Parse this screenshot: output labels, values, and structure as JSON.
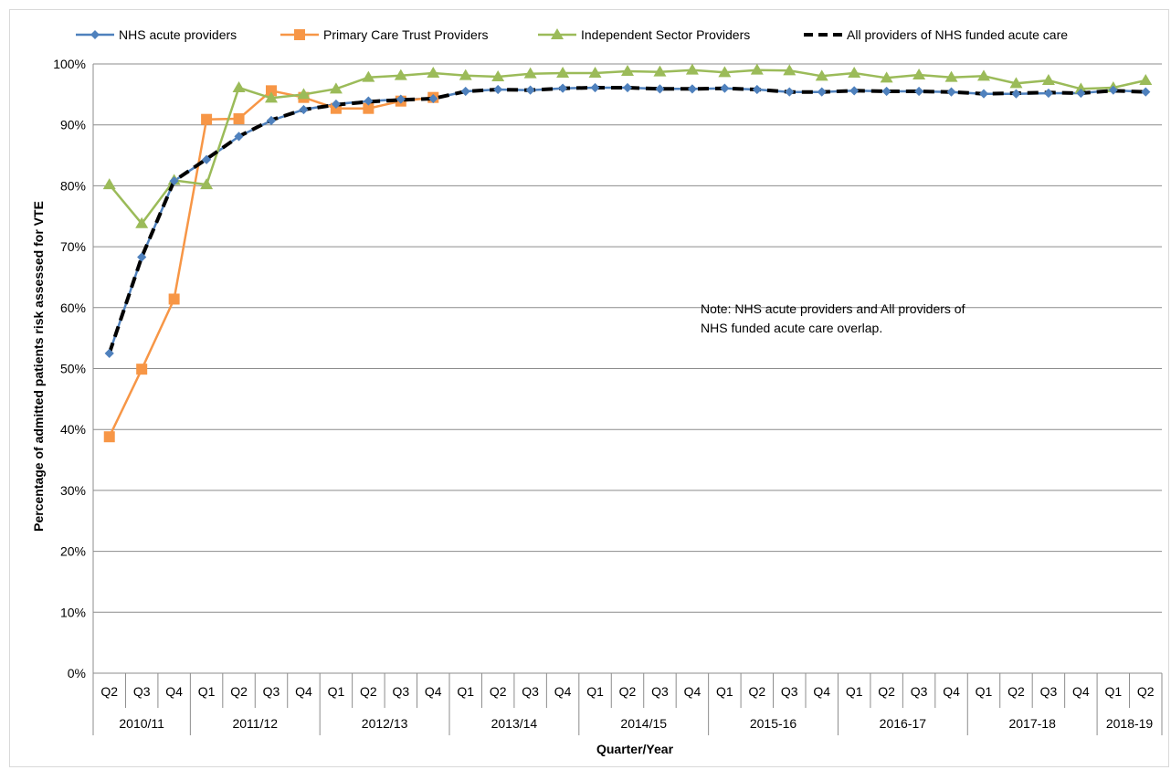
{
  "chart_data": {
    "type": "line",
    "xlabel": "Quarter/Year",
    "ylabel": "Percentage of admitted patients risk assessed for VTE",
    "ylim": [
      0,
      100
    ],
    "y_ticks": [
      "0%",
      "10%",
      "20%",
      "30%",
      "40%",
      "50%",
      "60%",
      "70%",
      "80%",
      "90%",
      "100%"
    ],
    "y_tick_values": [
      0,
      10,
      20,
      30,
      40,
      50,
      60,
      70,
      80,
      90,
      100
    ],
    "grid": true,
    "legend_position": "top",
    "categories": [
      "Q2",
      "Q3",
      "Q4",
      "Q1",
      "Q2",
      "Q3",
      "Q4",
      "Q1",
      "Q2",
      "Q3",
      "Q4",
      "Q1",
      "Q2",
      "Q3",
      "Q4",
      "Q1",
      "Q2",
      "Q3",
      "Q4",
      "Q1",
      "Q2",
      "Q3",
      "Q4",
      "Q1",
      "Q2",
      "Q3",
      "Q4",
      "Q1",
      "Q2",
      "Q3",
      "Q4",
      "Q1",
      "Q2"
    ],
    "year_groups": [
      {
        "label": "2010/11",
        "start": 0,
        "count": 3
      },
      {
        "label": "2011/12",
        "start": 3,
        "count": 4
      },
      {
        "label": "2012/13",
        "start": 7,
        "count": 4
      },
      {
        "label": "2013/14",
        "start": 11,
        "count": 4
      },
      {
        "label": "2014/15",
        "start": 15,
        "count": 4
      },
      {
        "label": "2015-16",
        "start": 19,
        "count": 4
      },
      {
        "label": "2016-17",
        "start": 23,
        "count": 4
      },
      {
        "label": "2017-18",
        "start": 27,
        "count": 4
      },
      {
        "label": "2018-19",
        "start": 31,
        "count": 2
      }
    ],
    "series": [
      {
        "name": "NHS acute providers",
        "color": "#4f81bd",
        "marker": "diamond",
        "values": [
          52.5,
          68.3,
          80.8,
          84.3,
          88.1,
          90.7,
          92.5,
          93.4,
          93.9,
          94.2,
          94.3,
          95.5,
          95.8,
          95.7,
          96.0,
          96.1,
          96.1,
          95.9,
          95.9,
          96.0,
          95.8,
          95.4,
          95.4,
          95.6,
          95.5,
          95.5,
          95.4,
          95.1,
          95.1,
          95.2,
          95.2,
          95.7,
          95.4
        ]
      },
      {
        "name": "Primary Care Trust Providers",
        "color": "#f79646",
        "marker": "square",
        "values": [
          38.8,
          49.9,
          61.4,
          90.9,
          91.0,
          95.6,
          94.5,
          92.7,
          92.7,
          93.9,
          94.5,
          null,
          null,
          null,
          null,
          null,
          null,
          null,
          null,
          null,
          null,
          null,
          null,
          null,
          null,
          null,
          null,
          null,
          null,
          null,
          null,
          null,
          null
        ]
      },
      {
        "name": "Independent Sector Providers",
        "color": "#9bbb59",
        "marker": "triangle",
        "values": [
          80.2,
          73.8,
          80.9,
          80.2,
          96.1,
          94.4,
          95.0,
          95.9,
          97.8,
          98.1,
          98.5,
          98.1,
          97.9,
          98.4,
          98.5,
          98.5,
          98.8,
          98.7,
          99.0,
          98.6,
          99.0,
          98.9,
          98.0,
          98.5,
          97.7,
          98.2,
          97.8,
          98.0,
          96.8,
          97.3,
          95.9,
          96.1,
          97.3
        ]
      },
      {
        "name": "All providers of NHS funded acute care",
        "color": "#000000",
        "marker": "none",
        "values": [
          52.5,
          68.3,
          80.8,
          84.4,
          88.1,
          90.8,
          92.5,
          93.3,
          93.8,
          94.1,
          94.3,
          95.5,
          95.8,
          95.7,
          96.0,
          96.1,
          96.1,
          95.9,
          95.9,
          96.0,
          95.8,
          95.4,
          95.4,
          95.6,
          95.5,
          95.5,
          95.4,
          95.1,
          95.2,
          95.3,
          95.2,
          95.6,
          95.4
        ]
      }
    ],
    "annotation": [
      "Note: NHS acute providers and All providers of",
      "NHS funded acute care overlap."
    ]
  }
}
